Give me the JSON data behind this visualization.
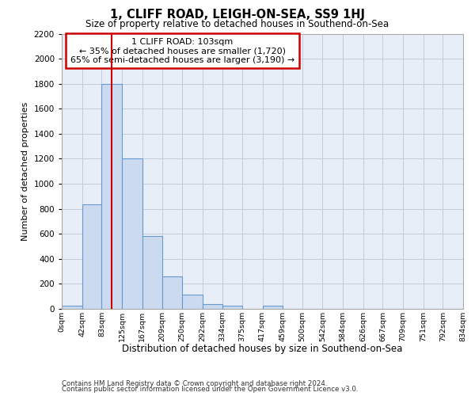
{
  "title": "1, CLIFF ROAD, LEIGH-ON-SEA, SS9 1HJ",
  "subtitle": "Size of property relative to detached houses in Southend-on-Sea",
  "xlabel": "Distribution of detached houses by size in Southend-on-Sea",
  "ylabel": "Number of detached properties",
  "bar_heights": [
    25,
    835,
    1800,
    1200,
    580,
    260,
    115,
    40,
    25,
    0,
    25,
    0,
    0,
    0,
    0,
    0,
    0,
    0,
    0,
    0
  ],
  "bin_edges": [
    0,
    42,
    83,
    125,
    167,
    209,
    250,
    292,
    334,
    375,
    417,
    459,
    500,
    542,
    584,
    626,
    667,
    709,
    751,
    792,
    834
  ],
  "x_tick_labels": [
    "0sqm",
    "42sqm",
    "83sqm",
    "125sqm",
    "167sqm",
    "209sqm",
    "250sqm",
    "292sqm",
    "334sqm",
    "375sqm",
    "417sqm",
    "459sqm",
    "500sqm",
    "542sqm",
    "584sqm",
    "626sqm",
    "667sqm",
    "709sqm",
    "751sqm",
    "792sqm",
    "834sqm"
  ],
  "bar_color": "#ccdaf0",
  "bar_edge_color": "#6699cc",
  "grid_color": "#c0ccdd",
  "background_color": "#e8eef7",
  "property_size": 103,
  "red_line_color": "#cc0000",
  "annotation_text": "1 CLIFF ROAD: 103sqm\n← 35% of detached houses are smaller (1,720)\n65% of semi-detached houses are larger (3,190) →",
  "annotation_box_color": "#cc0000",
  "ylim": [
    0,
    2200
  ],
  "yticks": [
    0,
    200,
    400,
    600,
    800,
    1000,
    1200,
    1400,
    1600,
    1800,
    2000,
    2200
  ],
  "footer_line1": "Contains HM Land Registry data © Crown copyright and database right 2024.",
  "footer_line2": "Contains public sector information licensed under the Open Government Licence v3.0."
}
